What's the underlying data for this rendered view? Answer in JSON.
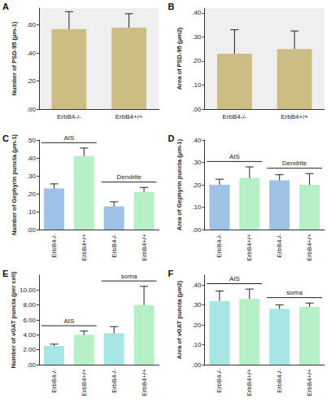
{
  "chart_data": [
    {
      "panel": "A",
      "type": "bar",
      "categories": [
        "ErbB4-/-",
        "ErbB4+/+"
      ],
      "values": [
        0.57,
        0.58
      ],
      "errors": [
        0.125,
        0.1
      ],
      "colors": [
        "#cbbd84",
        "#cbbd84"
      ],
      "y_label": "Number of PSD-95 (μm-1)",
      "ylim": [
        0,
        0.72
      ],
      "yticks": [
        {
          "value": 0,
          "label": ".00"
        },
        {
          "value": 0.2,
          "label": ".20"
        },
        {
          "value": 0.4,
          "label": ".40"
        },
        {
          "value": 0.6,
          "label": ".60"
        }
      ],
      "grid": false
    },
    {
      "panel": "B",
      "type": "bar",
      "categories": [
        "ErbB4-/-",
        "ErbB4+/+"
      ],
      "values": [
        0.23,
        0.25
      ],
      "errors": [
        0.1,
        0.075
      ],
      "colors": [
        "#cbbd84",
        "#cbbd84"
      ],
      "y_label": "Area of PSD-95 (μm2)",
      "ylim": [
        0,
        0.42
      ],
      "yticks": [
        {
          "value": 0,
          "label": ".00"
        },
        {
          "value": 0.1,
          "label": ".10"
        },
        {
          "value": 0.2,
          "label": ".20"
        },
        {
          "value": 0.3,
          "label": ".30"
        },
        {
          "value": 0.4,
          "label": ".40"
        }
      ],
      "grid": false
    },
    {
      "panel": "C",
      "type": "bar",
      "categories": [
        "ErbB4-/-",
        "ErbB4+/+",
        "ErbB4-/-",
        "ErbB4+/+"
      ],
      "values": [
        0.23,
        0.41,
        0.13,
        0.21
      ],
      "errors": [
        0.025,
        0.045,
        0.025,
        0.025
      ],
      "groups": [
        {
          "label": "AIS",
          "size": 2
        },
        {
          "label": "Dendrite",
          "size": 2
        }
      ],
      "colors": [
        "#9ec3e6",
        "#b5f0c6",
        "#9ec3e6",
        "#b5f0c6"
      ],
      "y_label": "Number of Gephyrin puncta (μm-1)",
      "ylim": [
        0,
        0.5
      ],
      "yticks": [
        {
          "value": 0,
          "label": ".00"
        },
        {
          "value": 0.1,
          "label": ".10"
        },
        {
          "value": 0.2,
          "label": ".20"
        },
        {
          "value": 0.3,
          "label": ".30"
        },
        {
          "value": 0.4,
          "label": ".40"
        },
        {
          "value": 0.5,
          "label": ".50"
        }
      ],
      "grid": false
    },
    {
      "panel": "D",
      "type": "bar",
      "categories": [
        "ErbB4-/-",
        "ErbB4+/+",
        "ErbB4-/-",
        "ErbB4+/+"
      ],
      "values": [
        0.2,
        0.23,
        0.22,
        0.2
      ],
      "errors": [
        0.025,
        0.05,
        0.025,
        0.05
      ],
      "groups": [
        {
          "label": "AIS",
          "size": 2
        },
        {
          "label": "Dendrite",
          "size": 2
        }
      ],
      "colors": [
        "#9ec3e6",
        "#b5f0c6",
        "#9ec3e6",
        "#b5f0c6"
      ],
      "y_label": "Area of Gephyrin puncta (μm-1)",
      "ylim": [
        0,
        0.4
      ],
      "yticks": [
        {
          "value": 0,
          "label": ".00"
        },
        {
          "value": 0.1,
          "label": ".10"
        },
        {
          "value": 0.2,
          "label": ".20"
        },
        {
          "value": 0.3,
          "label": ".30"
        },
        {
          "value": 0.4,
          "label": ".40"
        }
      ],
      "grid": false
    },
    {
      "panel": "E",
      "type": "bar",
      "categories": [
        "ErbB4-/-",
        "ErbB4+/+",
        "ErbB4-/-",
        "ErbB4+/+"
      ],
      "values": [
        2.5,
        4.0,
        4.2,
        8.0
      ],
      "errors": [
        0.25,
        0.5,
        0.9,
        2.5
      ],
      "groups": [
        {
          "label": "AIS",
          "size": 2
        },
        {
          "label": "soma",
          "size": 2
        }
      ],
      "colors": [
        "#a8e6e6",
        "#b5f0c6",
        "#a8e6e6",
        "#b5f0c6"
      ],
      "y_label": "Number of vGAT puncta (per cell)",
      "ylim": [
        0,
        12
      ],
      "yticks": [
        {
          "value": 0,
          "label": ".00"
        },
        {
          "value": 2,
          "label": "2.00"
        },
        {
          "value": 4,
          "label": "4.00"
        },
        {
          "value": 6,
          "label": "6.00"
        },
        {
          "value": 8,
          "label": "8.00"
        },
        {
          "value": 10,
          "label": "10.00"
        }
      ],
      "grid": false
    },
    {
      "panel": "F",
      "type": "bar",
      "categories": [
        "ErbB4-/-",
        "ErbB4+/+",
        "ErbB4-/-",
        "ErbB4+/+"
      ],
      "values": [
        0.32,
        0.33,
        0.28,
        0.29
      ],
      "errors": [
        0.05,
        0.05,
        0.02,
        0.02
      ],
      "groups": [
        {
          "label": "AIS",
          "size": 2
        },
        {
          "label": "soma",
          "size": 2
        }
      ],
      "colors": [
        "#a8e6e6",
        "#b5f0c6",
        "#a8e6e6",
        "#b5f0c6"
      ],
      "y_label": "Area of vGAT puncta (μm2)",
      "ylim": [
        0,
        0.45
      ],
      "yticks": [
        {
          "value": 0,
          "label": ".00"
        },
        {
          "value": 0.1,
          "label": ".10"
        },
        {
          "value": 0.2,
          "label": ".20"
        },
        {
          "value": 0.3,
          "label": ".30"
        },
        {
          "value": 0.4,
          "label": ".40"
        }
      ],
      "grid": false
    }
  ]
}
